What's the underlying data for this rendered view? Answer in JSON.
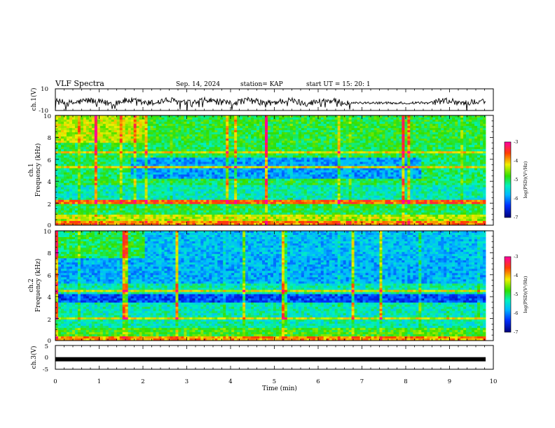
{
  "header": {
    "title": "VLF Spectra",
    "date": "Sep. 14, 2024",
    "station": "station= KAP",
    "start": "start  UT =   15: 20: 1"
  },
  "chart_data": [
    {
      "type": "line",
      "panel": "ch1-waveform",
      "ylabel": "ch.1(V)",
      "ylim": [
        -10,
        10
      ],
      "yticks": [
        "10",
        "-10"
      ],
      "xlim": [
        0,
        9.8
      ],
      "trend": "noisy waveform roughly between -6 and 4 V, centered near -2 V"
    },
    {
      "type": "heatmap",
      "panel": "ch1-spectrogram",
      "ylabel_line1": "ch.1",
      "ylabel_line2": "Frequency (kHz)",
      "ylim": [
        0,
        10
      ],
      "yticks": [
        "0",
        "2",
        "4",
        "6",
        "8",
        "10"
      ],
      "xlim": [
        0,
        9.8
      ],
      "colorbar": {
        "label": "log(PSD)(V²/Hz)",
        "range": [
          -7,
          -3
        ],
        "ticks": [
          "-3",
          "-4",
          "-5",
          "-6",
          "-7"
        ]
      }
    },
    {
      "type": "heatmap",
      "panel": "ch2-spectrogram",
      "ylabel_line1": "ch.2",
      "ylabel_line2": "Frequency (kHz)",
      "ylim": [
        0,
        10
      ],
      "yticks": [
        "0",
        "2",
        "4",
        "6",
        "8",
        "10"
      ],
      "xlim": [
        0,
        9.8
      ],
      "colorbar": {
        "label": "log(PSD)(V²/Hz)",
        "range": [
          -7,
          -3
        ],
        "ticks": [
          "-3",
          "-4",
          "-5",
          "-6",
          "-7"
        ]
      }
    },
    {
      "type": "line",
      "panel": "ch3-waveform",
      "ylabel": "ch.3(V)",
      "ylim": [
        -5,
        5
      ],
      "yticks": [
        "5",
        "0",
        "-5"
      ],
      "xlim": [
        0,
        9.8
      ],
      "value": -0.8,
      "trend": "flat thick band near -1 V"
    }
  ],
  "xaxis": {
    "label": "Time (min)",
    "range": [
      0,
      10
    ],
    "ticks": [
      "0",
      "1",
      "2",
      "3",
      "4",
      "5",
      "6",
      "7",
      "8",
      "9",
      "10"
    ]
  }
}
